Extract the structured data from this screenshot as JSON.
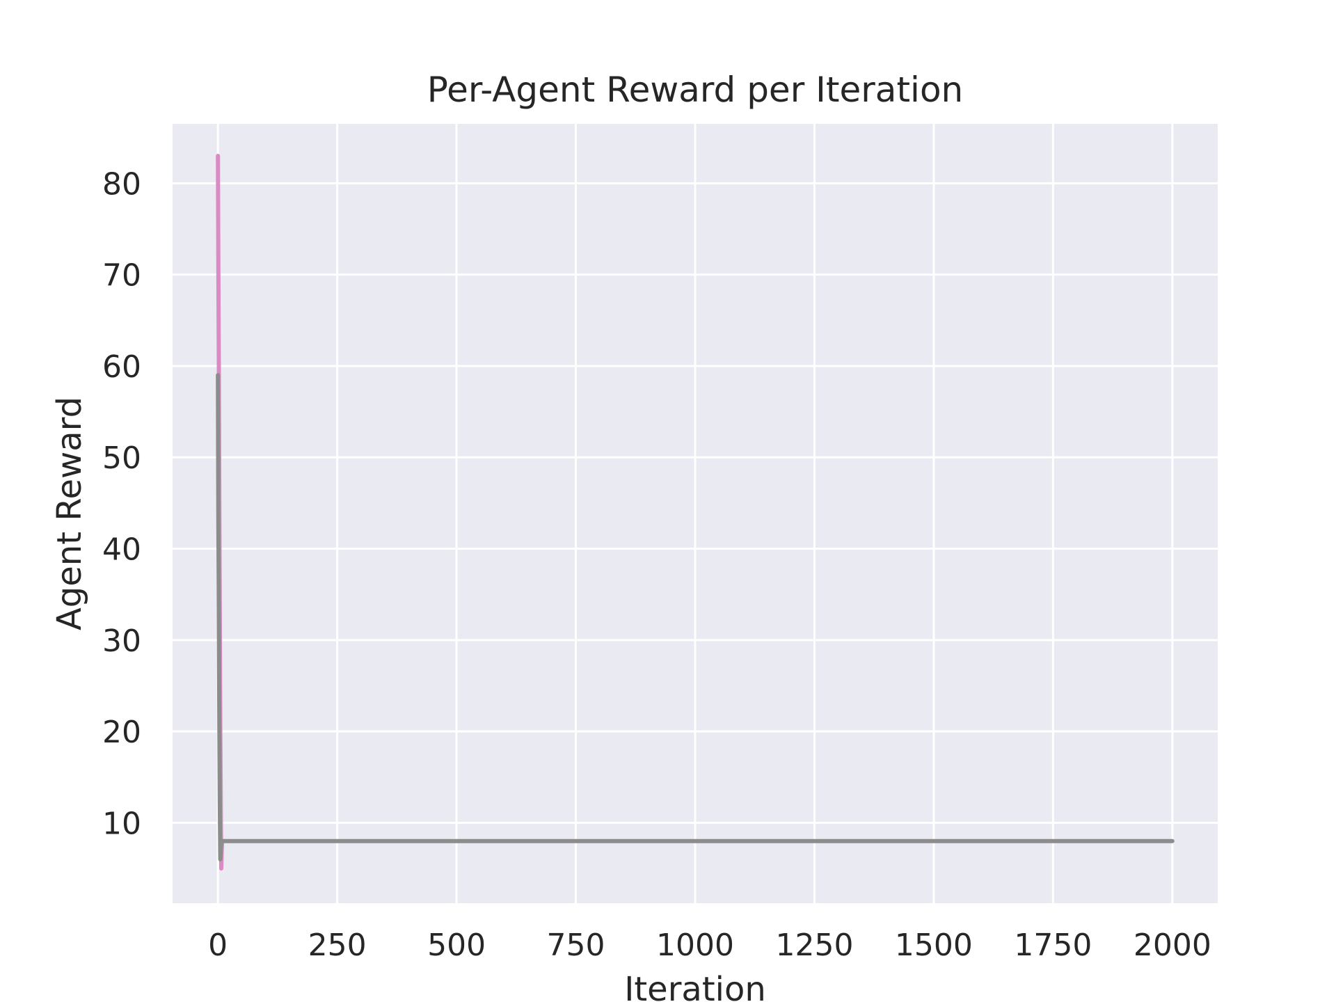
{
  "chart_data": {
    "type": "line",
    "title": "Per-Agent Reward per Iteration",
    "xlabel": "Iteration",
    "ylabel": "Agent Reward",
    "xlim": [
      -95,
      2095
    ],
    "ylim": [
      1.2,
      86.5
    ],
    "x_ticks": [
      0,
      250,
      500,
      750,
      1000,
      1250,
      1500,
      1750,
      2000
    ],
    "y_ticks": [
      10,
      20,
      30,
      40,
      50,
      60,
      70,
      80
    ],
    "grid": true,
    "legend": "none",
    "background_color": "#eaeaf2",
    "grid_color": "#ffffff",
    "series": [
      {
        "color": "#da8bc3",
        "x": [
          0,
          1,
          2,
          3,
          4,
          5,
          6,
          7,
          8,
          9,
          10
        ],
        "y": [
          83,
          71,
          60,
          45,
          33,
          20,
          12,
          5,
          7,
          8,
          8
        ]
      },
      {
        "color": "#8c8c8c",
        "x": [
          0,
          1,
          2,
          3,
          4,
          5,
          6,
          7,
          8,
          9,
          10,
          100,
          500,
          1000,
          1500,
          2000
        ],
        "y": [
          59,
          43,
          34,
          21,
          12,
          6,
          7,
          8,
          8,
          8,
          8,
          8,
          8,
          8,
          8,
          8
        ]
      }
    ]
  }
}
